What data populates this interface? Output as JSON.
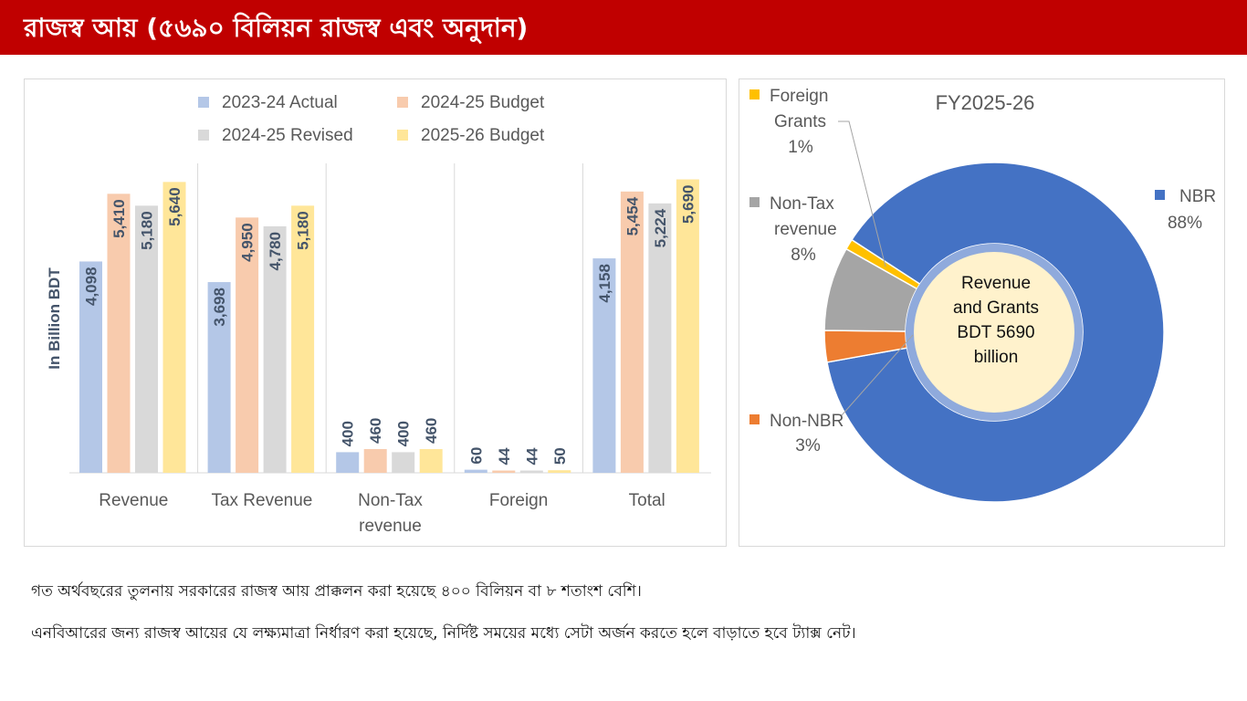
{
  "header": {
    "title": "রাজস্ব আয় (৫৬৯০ বিলিয়ন রাজস্ব এবং অনুদান)"
  },
  "chart_data": [
    {
      "type": "bar",
      "title": "",
      "ylabel": "In Billion BDT",
      "xlabel": "",
      "ylim": [
        0,
        6000
      ],
      "grid": "vertical separators between categories",
      "legend": "top",
      "categories": [
        "Revenue",
        "Tax Revenue",
        "Non-Tax revenue",
        "Foreign",
        "Total"
      ],
      "category_lines": [
        [
          "Revenue"
        ],
        [
          "Tax Revenue"
        ],
        [
          "Non-Tax",
          "revenue"
        ],
        [
          "Foreign"
        ],
        [
          "Total"
        ]
      ],
      "series": [
        {
          "name": "2023-24   Actual",
          "color": "#b4c7e7",
          "values": [
            4098,
            3698,
            400,
            60,
            4158
          ],
          "labels": [
            "4,098",
            "3,698",
            "400",
            "60",
            "4,158"
          ]
        },
        {
          "name": "2024-25   Budget",
          "color": "#f8cbad",
          "values": [
            5410,
            4950,
            460,
            44,
            5454
          ],
          "labels": [
            "5,410",
            "4,950",
            "460",
            "44",
            "5,454"
          ]
        },
        {
          "name": "2024-25   Revised",
          "color": "#d9d9d9",
          "values": [
            5180,
            4780,
            400,
            44,
            5224
          ],
          "labels": [
            "5,180",
            "4,780",
            "400",
            "44",
            "5,224"
          ]
        },
        {
          "name": "2025-26   Budget",
          "color": "#ffe699",
          "values": [
            5640,
            5180,
            460,
            50,
            5690
          ],
          "labels": [
            "5,640",
            "5,180",
            "460",
            "50",
            "5,690"
          ]
        }
      ]
    },
    {
      "type": "pie",
      "title": "FY2025-26",
      "center_text": [
        "Revenue",
        "and Grants",
        "BDT 5690",
        "billion"
      ],
      "slices": [
        {
          "name": "NBR",
          "lines": [
            "NBR"
          ],
          "pct_label": "88%",
          "value": 88,
          "color": "#4472c4"
        },
        {
          "name": "Non-NBR",
          "lines": [
            "Non-NBR"
          ],
          "pct_label": "3%",
          "value": 3,
          "color": "#ed7d31"
        },
        {
          "name": "Non-Tax revenue",
          "lines": [
            "Non-Tax",
            "revenue"
          ],
          "pct_label": "8%",
          "value": 8,
          "color": "#a5a5a5"
        },
        {
          "name": "Foreign Grants",
          "lines": [
            "Foreign",
            "Grants"
          ],
          "pct_label": "1%",
          "value": 1,
          "color": "#ffc000"
        }
      ]
    }
  ],
  "notes": [
    "গত অর্থবছরের তুলনায় সরকারের রাজস্ব আয় প্রাক্কলন করা হয়েছে ৪০০ বিলিয়ন বা ৮ শতাংশ বেশি।",
    "এনবিআরের জন্য রাজস্ব আয়ের যে লক্ষ্যমাত্রা নির্ধারণ করা হয়েছে, নির্দিষ্ট সময়ের মধ্যে সেটা অর্জন করতে হলে বাড়াতে হবে ট্যাক্স নেট।"
  ]
}
